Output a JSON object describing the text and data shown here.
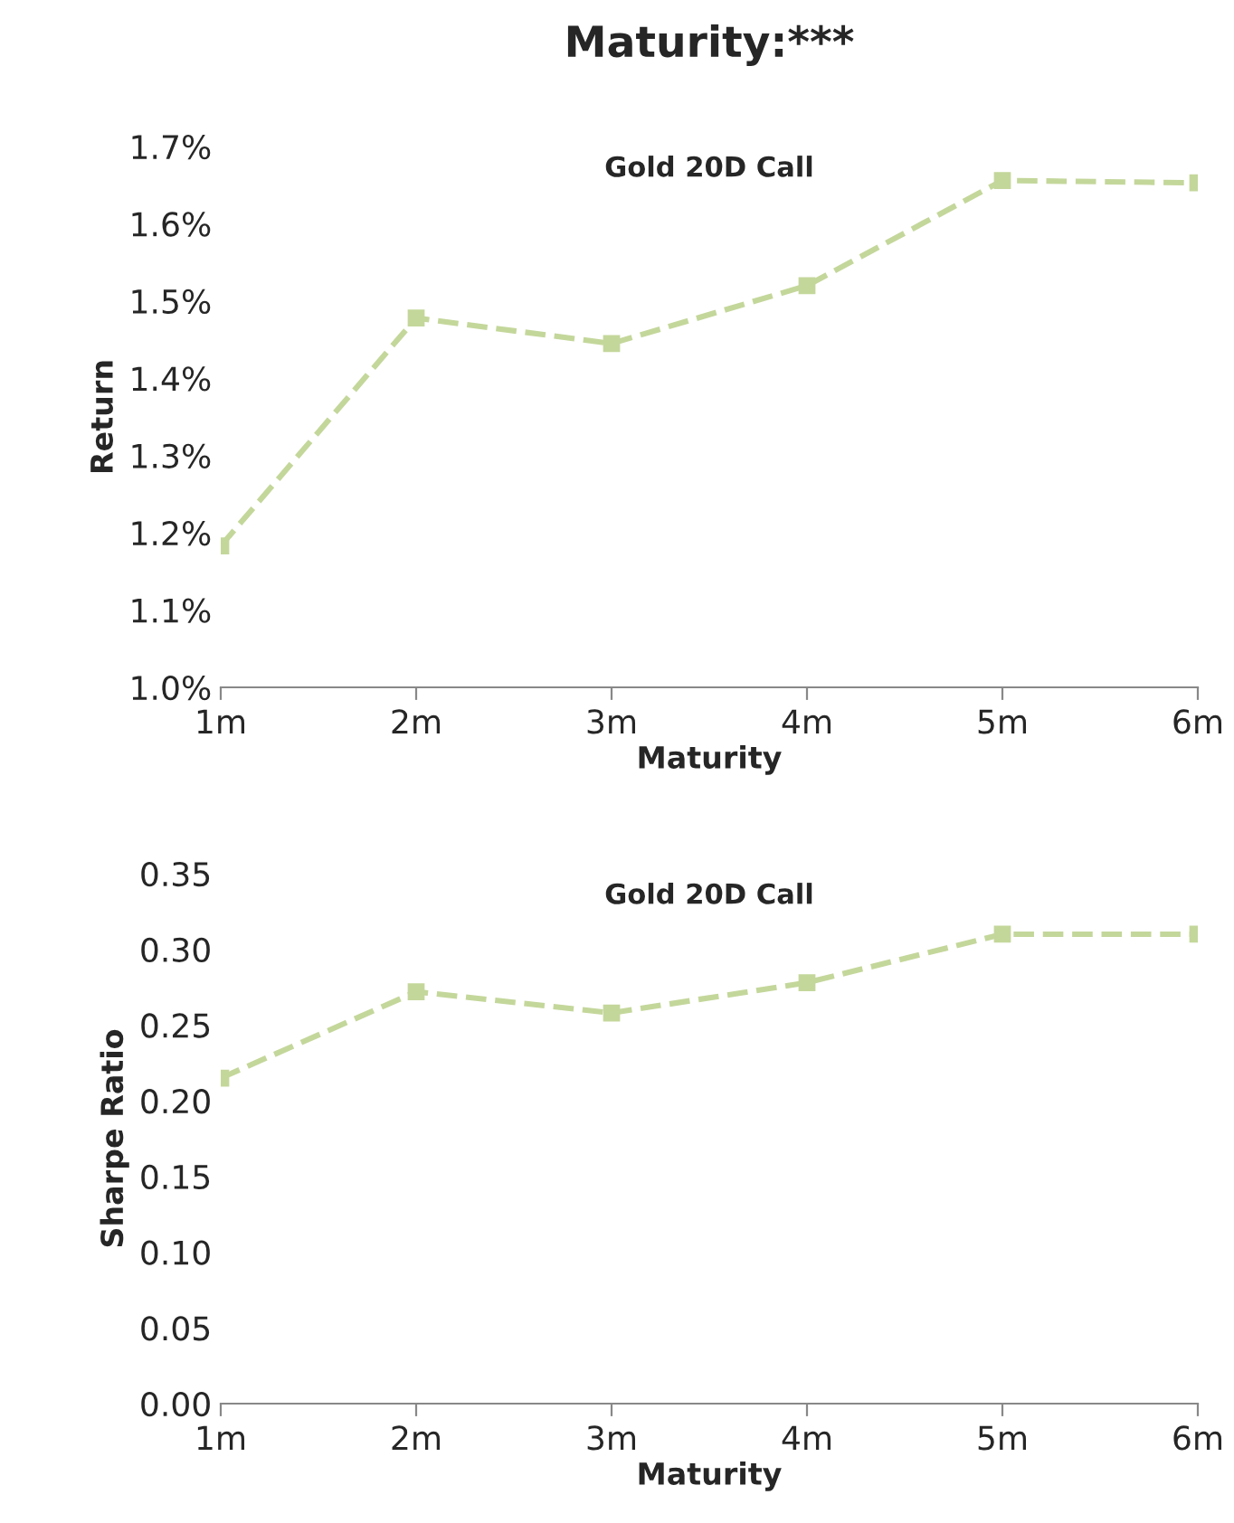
{
  "chart_data": [
    {
      "type": "line",
      "title": "Maturity:***",
      "subtitle": "Gold 20D Call",
      "xlabel": "Maturity",
      "ylabel": "Return",
      "categories": [
        "1m",
        "2m",
        "3m",
        "4m",
        "5m",
        "6m"
      ],
      "series": [
        {
          "color": "#c4d79b",
          "values": [
            1.183,
            1.478,
            1.445,
            1.52,
            1.656,
            1.653
          ]
        }
      ],
      "ylim": [
        1.0,
        1.7
      ],
      "yticks": [
        {
          "value": 1.0,
          "label": "1.0%"
        },
        {
          "value": 1.1,
          "label": "1.1%"
        },
        {
          "value": 1.2,
          "label": "1.2%"
        },
        {
          "value": 1.3,
          "label": "1.3%"
        },
        {
          "value": 1.4,
          "label": "1.4%"
        },
        {
          "value": 1.5,
          "label": "1.5%"
        },
        {
          "value": 1.6,
          "label": "1.6%"
        },
        {
          "value": 1.7,
          "label": "1.7%"
        }
      ],
      "marker": "square",
      "line_style": "dashed",
      "grid": false
    },
    {
      "type": "line",
      "title": "Gold 20D Call",
      "xlabel": "Maturity",
      "ylabel": "Sharpe Ratio",
      "categories": [
        "1m",
        "2m",
        "3m",
        "4m",
        "5m",
        "6m"
      ],
      "series": [
        {
          "color": "#c4d79b",
          "values": [
            0.215,
            0.272,
            0.258,
            0.278,
            0.31,
            0.31
          ]
        }
      ],
      "ylim": [
        0.0,
        0.35
      ],
      "yticks": [
        {
          "value": 0.0,
          "label": "0.00"
        },
        {
          "value": 0.05,
          "label": "0.05"
        },
        {
          "value": 0.1,
          "label": "0.10"
        },
        {
          "value": 0.15,
          "label": "0.15"
        },
        {
          "value": 0.2,
          "label": "0.20"
        },
        {
          "value": 0.25,
          "label": "0.25"
        },
        {
          "value": 0.3,
          "label": "0.30"
        },
        {
          "value": 0.35,
          "label": "0.35"
        }
      ],
      "marker": "square",
      "line_style": "dashed",
      "grid": false
    }
  ]
}
